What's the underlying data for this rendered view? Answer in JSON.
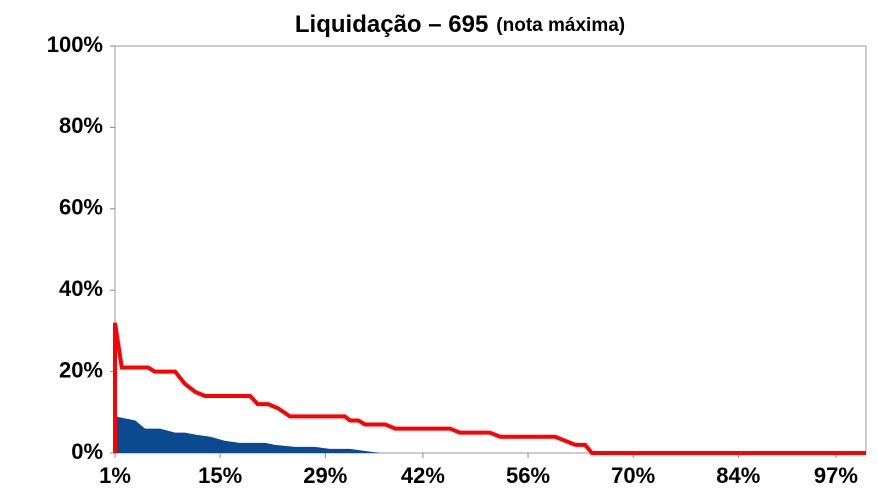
{
  "chart_data": {
    "type": "line",
    "title": "Liquidação – 695",
    "subtitle": "(nota máxima)",
    "xlim": [
      1,
      101
    ],
    "xticks": [
      {
        "value": 1,
        "label": "1%"
      },
      {
        "value": 15,
        "label": "15%"
      },
      {
        "value": 29,
        "label": "29%"
      },
      {
        "value": 42,
        "label": "42%"
      },
      {
        "value": 56,
        "label": "56%"
      },
      {
        "value": 70,
        "label": "70%"
      },
      {
        "value": 84,
        "label": "84%"
      },
      {
        "value": 97,
        "label": "97%"
      }
    ],
    "ylim": [
      0,
      100
    ],
    "yticks": [
      {
        "value": 0,
        "label": "0%"
      },
      {
        "value": 20,
        "label": "20%"
      },
      {
        "value": 40,
        "label": "40%"
      },
      {
        "value": 60,
        "label": "60%"
      },
      {
        "value": 80,
        "label": "80%"
      },
      {
        "value": 100,
        "label": "100%"
      }
    ],
    "grid": false,
    "series": [
      {
        "color": "#0b4a8f",
        "fill": true,
        "x": [
          1,
          3.7,
          5,
          7,
          9,
          10.3,
          11.7,
          13.7,
          15.6,
          17.6,
          21,
          22.3,
          25,
          27.6,
          29.6,
          32.3,
          34.3,
          36.3,
          101
        ],
        "values": [
          9,
          8,
          6,
          6,
          5,
          5,
          4.5,
          4,
          3,
          2.5,
          2.5,
          2,
          1.5,
          1.5,
          1,
          1,
          0.5,
          0,
          0
        ]
      },
      {
        "color": "#ff0000",
        "fill": false,
        "x": [
          1,
          1,
          1.9,
          5.4,
          6.3,
          9,
          10.3,
          11.7,
          13,
          19,
          20,
          21.4,
          22.7,
          24.3,
          31.6,
          32.3,
          33.4,
          34.3,
          37,
          38.3,
          45.6,
          46.9,
          50.9,
          52.3,
          59.6,
          62.3,
          63.6,
          64.5,
          101
        ],
        "values": [
          0,
          32,
          21,
          21,
          20,
          20,
          17,
          15,
          14,
          14,
          12,
          12,
          11,
          9,
          9,
          8,
          8,
          7,
          7,
          6,
          6,
          5,
          5,
          4,
          4,
          2,
          2,
          0,
          0
        ]
      }
    ]
  }
}
